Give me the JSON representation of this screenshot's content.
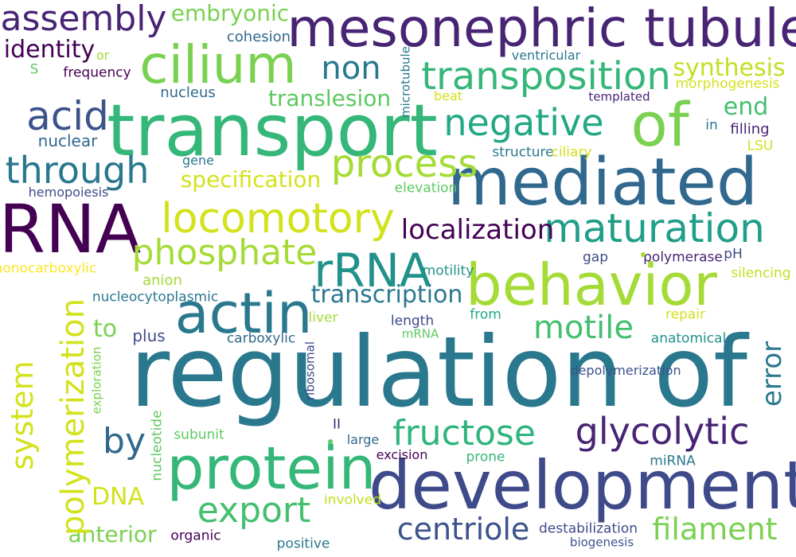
{
  "words": [
    {
      "text": "regulation of",
      "color": "#2a788e"
    },
    {
      "text": "transport",
      "color": "#35b779"
    },
    {
      "text": "mesonephric tubule",
      "color": "#482475"
    },
    {
      "text": "mediated",
      "color": "#31688e"
    },
    {
      "text": "development",
      "color": "#3e4a89"
    },
    {
      "text": "behavior",
      "color": "#a5db36"
    },
    {
      "text": "RNA",
      "color": "#440154"
    },
    {
      "text": "protein",
      "color": "#35b779"
    },
    {
      "text": "cilium",
      "color": "#7ad151"
    },
    {
      "text": "of",
      "color": "#7ad151"
    },
    {
      "text": "actin",
      "color": "#2a788e"
    },
    {
      "text": "transposition",
      "color": "#35b779"
    },
    {
      "text": "locomotory",
      "color": "#d2e21b"
    },
    {
      "text": "maturation",
      "color": "#1f9e89"
    },
    {
      "text": "rRNA",
      "color": "#21918c"
    },
    {
      "text": "process",
      "color": "#a5db36"
    },
    {
      "text": "negative",
      "color": "#22a884"
    },
    {
      "text": "phosphate",
      "color": "#a5db36"
    },
    {
      "text": "glycolytic",
      "color": "#482475"
    },
    {
      "text": "through",
      "color": "#2a788e"
    },
    {
      "text": "acid",
      "color": "#3b528b"
    },
    {
      "text": "assembly",
      "color": "#482475"
    },
    {
      "text": "fructose",
      "color": "#2fb47c"
    },
    {
      "text": "export",
      "color": "#44bf70"
    },
    {
      "text": "centriole",
      "color": "#3b528b"
    },
    {
      "text": "filament",
      "color": "#7ad151"
    },
    {
      "text": "motile",
      "color": "#44bf70"
    },
    {
      "text": "localization",
      "color": "#440154"
    },
    {
      "text": "non",
      "color": "#2a788e"
    },
    {
      "text": "by",
      "color": "#31688e"
    },
    {
      "text": "transcription",
      "color": "#2a788e"
    },
    {
      "text": "embryonic",
      "color": "#7ad151"
    },
    {
      "text": "specification",
      "color": "#d2e21b"
    },
    {
      "text": "translesion",
      "color": "#5ec962"
    },
    {
      "text": "synthesis",
      "color": "#c2df23"
    },
    {
      "text": "end",
      "color": "#44bf70"
    },
    {
      "text": "identity",
      "color": "#440154"
    },
    {
      "text": "anterior",
      "color": "#7ad151"
    },
    {
      "text": "DNA",
      "color": "#d2e21b"
    },
    {
      "text": "to",
      "color": "#7ad151"
    },
    {
      "text": "nuclear",
      "color": "#31688e"
    },
    {
      "text": "cohesion",
      "color": "#31688e"
    },
    {
      "text": "frequency",
      "color": "#440154"
    },
    {
      "text": "nucleus",
      "color": "#31688e"
    },
    {
      "text": "or",
      "color": "#a5db36"
    },
    {
      "text": "S",
      "color": "#5ec962"
    },
    {
      "text": "ventricular",
      "color": "#2a788e"
    },
    {
      "text": "beat",
      "color": "#d2e21b"
    },
    {
      "text": "templated",
      "color": "#482475"
    },
    {
      "text": "morphogenesis",
      "color": "#d2e21b"
    },
    {
      "text": "in",
      "color": "#2a788e"
    },
    {
      "text": "filling",
      "color": "#482475"
    },
    {
      "text": "LSU",
      "color": "#d2e21b"
    },
    {
      "text": "structure",
      "color": "#2a788e"
    },
    {
      "text": "ciliary",
      "color": "#d2e21b"
    },
    {
      "text": "gene",
      "color": "#2a788e"
    },
    {
      "text": "hemopoiesis",
      "color": "#3e4a89"
    },
    {
      "text": "elevation",
      "color": "#5ec962"
    },
    {
      "text": "monocarboxylic",
      "color": "#fde725"
    },
    {
      "text": "anion",
      "color": "#a5db36"
    },
    {
      "text": "nucleocytoplasmic",
      "color": "#2a788e"
    },
    {
      "text": "gap",
      "color": "#3e4a89"
    },
    {
      "text": "polymerase",
      "color": "#482475"
    },
    {
      "text": "pH",
      "color": "#3e4a89"
    },
    {
      "text": "silencing",
      "color": "#c2df23"
    },
    {
      "text": "motility",
      "color": "#21918c"
    },
    {
      "text": "liver",
      "color": "#a5db36"
    },
    {
      "text": "plus",
      "color": "#3e4a89"
    },
    {
      "text": "from",
      "color": "#22a884"
    },
    {
      "text": "length",
      "color": "#3e4a89"
    },
    {
      "text": "mRNA",
      "color": "#5ec962"
    },
    {
      "text": "repair",
      "color": "#d2e21b"
    },
    {
      "text": "anatomical",
      "color": "#21918c"
    },
    {
      "text": "carboxylic",
      "color": "#31688e"
    },
    {
      "text": "depolymerization",
      "color": "#3b528b"
    },
    {
      "text": "II",
      "color": "#482475"
    },
    {
      "text": "subunit",
      "color": "#5ec962"
    },
    {
      "text": "large",
      "color": "#31688e"
    },
    {
      "text": "excision",
      "color": "#440154"
    },
    {
      "text": "prone",
      "color": "#35b779"
    },
    {
      "text": "miRNA",
      "color": "#2a788e"
    },
    {
      "text": "involved",
      "color": "#c2df23"
    },
    {
      "text": "organic",
      "color": "#440154"
    },
    {
      "text": "positive",
      "color": "#2a788e"
    },
    {
      "text": "destabilization",
      "color": "#3e4a89"
    },
    {
      "text": "biogenesis",
      "color": "#3b528b"
    },
    {
      "text": "system",
      "color": "#d2e21b"
    },
    {
      "text": "polymerization",
      "color": "#d2e21b"
    },
    {
      "text": "exploration",
      "color": "#7ad151"
    },
    {
      "text": "nucleotide",
      "color": "#5ec962"
    },
    {
      "text": "ribosomal",
      "color": "#3e4a89"
    },
    {
      "text": "error",
      "color": "#2a788e"
    },
    {
      "text": "microtubule",
      "color": "#2a788e"
    }
  ]
}
